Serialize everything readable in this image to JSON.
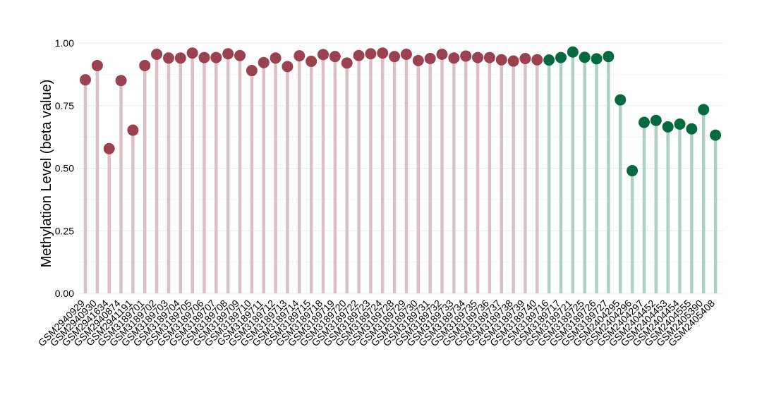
{
  "chart_data": {
    "type": "lollipop",
    "title": "",
    "xlabel": "",
    "ylabel": "Methylation Level (beta value)",
    "ylim": [
      0,
      1
    ],
    "yticks": [
      "0.00",
      "0.25",
      "0.50",
      "0.75",
      "1.00"
    ],
    "ytick_values": [
      0,
      0.25,
      0.5,
      0.75,
      1.0
    ],
    "grid": true,
    "legend": "none",
    "colors": {
      "group1_point": "#9a4250",
      "group1_stem": "#dcc0c6",
      "group2_point": "#066a40",
      "group2_stem": "#b0d0c4",
      "grid": "#ebebeb"
    },
    "categories": [
      "GSM2940929",
      "GSM2940930",
      "GSM2941634",
      "GSM2940874",
      "GSM2941191",
      "GSM3189701",
      "GSM3189702",
      "GSM3189703",
      "GSM3189704",
      "GSM3189705",
      "GSM3189706",
      "GSM3189707",
      "GSM3189708",
      "GSM3189709",
      "GSM3189710",
      "GSM3189711",
      "GSM3189712",
      "GSM3189713",
      "GSM3189714",
      "GSM3189715",
      "GSM3189718",
      "GSM3189719",
      "GSM3189720",
      "GSM3189722",
      "GSM3189723",
      "GSM3189724",
      "GSM3189728",
      "GSM3189729",
      "GSM3189730",
      "GSM3189731",
      "GSM3189732",
      "GSM3189733",
      "GSM3189734",
      "GSM3189735",
      "GSM3189736",
      "GSM3189737",
      "GSM3189738",
      "GSM3189739",
      "GSM3189740",
      "GSM3189716",
      "GSM3189717",
      "GSM3189721",
      "GSM3189725",
      "GSM3189726",
      "GSM3189727",
      "GSM2404295",
      "GSM2404296",
      "GSM2404297",
      "GSM2404452",
      "GSM2404453",
      "GSM2404454",
      "GSM2404555",
      "GSM2405390",
      "GSM2405408"
    ],
    "groups": [
      1,
      1,
      1,
      1,
      1,
      1,
      1,
      1,
      1,
      1,
      1,
      1,
      1,
      1,
      1,
      1,
      1,
      1,
      1,
      1,
      1,
      1,
      1,
      1,
      1,
      1,
      1,
      1,
      1,
      1,
      1,
      1,
      1,
      1,
      1,
      1,
      1,
      1,
      1,
      2,
      2,
      2,
      2,
      2,
      2,
      2,
      2,
      2,
      2,
      2,
      2,
      2,
      2,
      2
    ],
    "values": [
      0.853,
      0.91,
      0.578,
      0.85,
      0.652,
      0.91,
      0.955,
      0.94,
      0.94,
      0.96,
      0.942,
      0.942,
      0.957,
      0.95,
      0.89,
      0.922,
      0.94,
      0.906,
      0.949,
      0.927,
      0.954,
      0.946,
      0.92,
      0.95,
      0.957,
      0.96,
      0.946,
      0.955,
      0.93,
      0.938,
      0.955,
      0.94,
      0.948,
      0.942,
      0.942,
      0.933,
      0.928,
      0.938,
      0.933,
      0.932,
      0.942,
      0.964,
      0.943,
      0.937,
      0.946,
      0.773,
      0.49,
      0.683,
      0.691,
      0.665,
      0.676,
      0.657,
      0.734,
      0.632
    ]
  }
}
